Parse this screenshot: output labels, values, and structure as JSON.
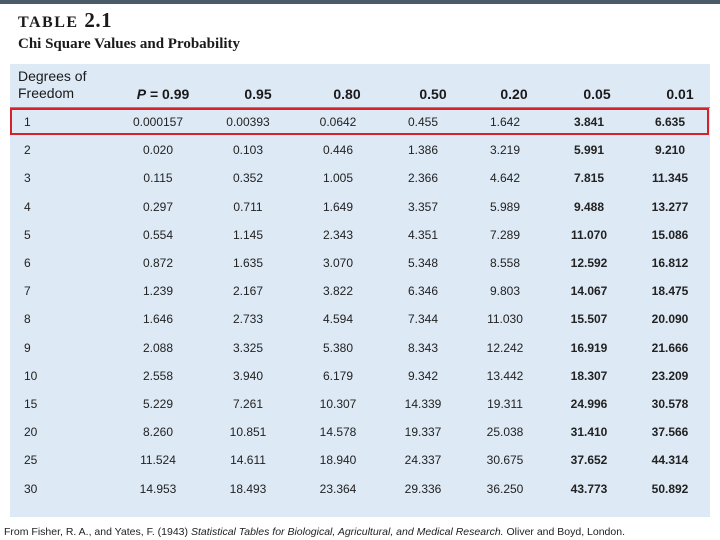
{
  "header": {
    "table_label": "TABLE",
    "table_number": "2.1",
    "title": "Chi Square Values and Probability"
  },
  "columns": {
    "df_line1": "Degrees of",
    "df_line2": "Freedom",
    "p_prefix": "P",
    "p_eq": " = 0.99",
    "p2": "0.95",
    "p3": "0.80",
    "p4": "0.50",
    "p5": "0.20",
    "p6": "0.05",
    "p7": "0.01"
  },
  "rows": [
    {
      "df": "1",
      "v": [
        "0.000157",
        "0.00393",
        "0.0642",
        "0.455",
        "1.642",
        "3.841",
        "6.635"
      ]
    },
    {
      "df": "2",
      "v": [
        "0.020",
        "0.103",
        "0.446",
        "1.386",
        "3.219",
        "5.991",
        "9.210"
      ]
    },
    {
      "df": "3",
      "v": [
        "0.115",
        "0.352",
        "1.005",
        "2.366",
        "4.642",
        "7.815",
        "11.345"
      ]
    },
    {
      "df": "4",
      "v": [
        "0.297",
        "0.711",
        "1.649",
        "3.357",
        "5.989",
        "9.488",
        "13.277"
      ]
    },
    {
      "df": "5",
      "v": [
        "0.554",
        "1.145",
        "2.343",
        "4.351",
        "7.289",
        "11.070",
        "15.086"
      ]
    },
    {
      "df": "6",
      "v": [
        "0.872",
        "1.635",
        "3.070",
        "5.348",
        "8.558",
        "12.592",
        "16.812"
      ]
    },
    {
      "df": "7",
      "v": [
        "1.239",
        "2.167",
        "3.822",
        "6.346",
        "9.803",
        "14.067",
        "18.475"
      ]
    },
    {
      "df": "8",
      "v": [
        "1.646",
        "2.733",
        "4.594",
        "7.344",
        "11.030",
        "15.507",
        "20.090"
      ]
    },
    {
      "df": "9",
      "v": [
        "2.088",
        "3.325",
        "5.380",
        "8.343",
        "12.242",
        "16.919",
        "21.666"
      ]
    },
    {
      "df": "10",
      "v": [
        "2.558",
        "3.940",
        "6.179",
        "9.342",
        "13.442",
        "18.307",
        "23.209"
      ]
    },
    {
      "df": "15",
      "v": [
        "5.229",
        "7.261",
        "10.307",
        "14.339",
        "19.311",
        "24.996",
        "30.578"
      ]
    },
    {
      "df": "20",
      "v": [
        "8.260",
        "10.851",
        "14.578",
        "19.337",
        "25.038",
        "31.410",
        "37.566"
      ]
    },
    {
      "df": "25",
      "v": [
        "11.524",
        "14.611",
        "18.940",
        "24.337",
        "30.675",
        "37.652",
        "44.314"
      ]
    },
    {
      "df": "30",
      "v": [
        "14.953",
        "18.493",
        "23.364",
        "29.336",
        "36.250",
        "43.773",
        "50.892"
      ]
    }
  ],
  "source": {
    "prefix": "From Fisher, R. A., and Yates, F. (1943) ",
    "book": "Statistical Tables for Biological, Agricultural, and Medical Research.",
    "suffix": " Oliver and Boyd, London."
  },
  "colors": {
    "highlight": "#d6202a",
    "panel": "#dde9f5"
  }
}
